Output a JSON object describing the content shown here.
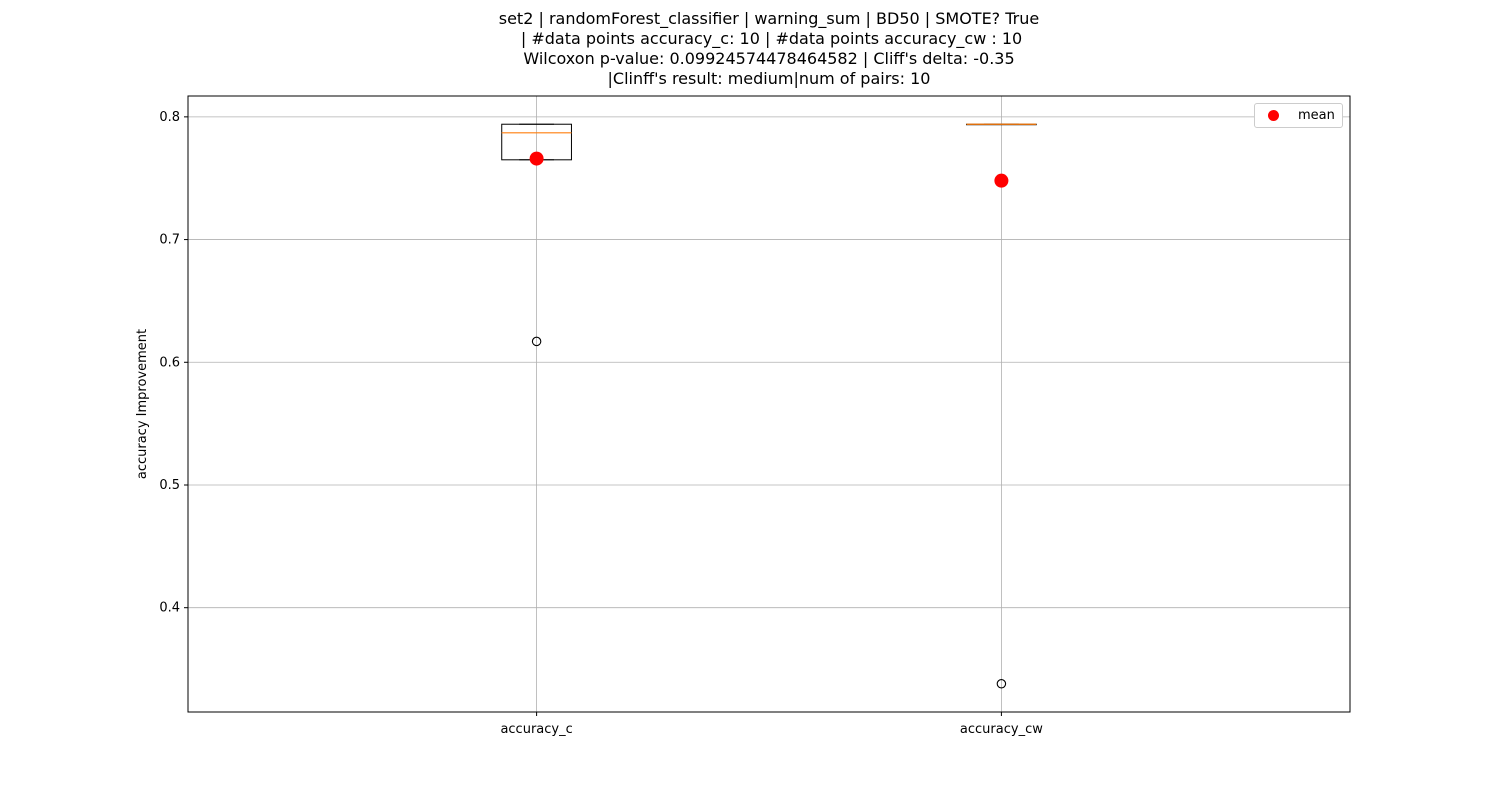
{
  "title_lines": [
    "set2 | randomForest_classifier | warning_sum | BD50 | SMOTE? True",
    " | #data points accuracy_c: 10 | #data points accuracy_cw : 10",
    "Wilcoxon p-value: 0.09924574478464582 | Cliff's delta: -0.35",
    "|Clinff's result: medium|num of pairs: 10"
  ],
  "chart_data": {
    "type": "box",
    "ylabel": "accuracy Improvement",
    "xlabel": "",
    "ylim": [
      0.315,
      0.817
    ],
    "yticks": [
      0.4,
      0.5,
      0.6,
      0.7,
      0.8
    ],
    "grid": true,
    "legend": {
      "entries": [
        "mean"
      ],
      "position": "top-right"
    },
    "colors": {
      "median": "#ff7f0e",
      "mean": "#ff0000",
      "box": "#000000",
      "grid": "#b0b0b0"
    },
    "categories": [
      "accuracy_c",
      "accuracy_cw"
    ],
    "boxes": [
      {
        "name": "accuracy_c",
        "whisker_low": 0.765,
        "q1": 0.765,
        "median": 0.787,
        "q3": 0.794,
        "whisker_high": 0.794,
        "mean": 0.766,
        "outliers": [
          0.617
        ]
      },
      {
        "name": "accuracy_cw",
        "whisker_low": 0.794,
        "q1": 0.794,
        "median": 0.794,
        "q3": 0.794,
        "whisker_high": 0.794,
        "mean": 0.748,
        "outliers": [
          0.338
        ]
      }
    ]
  }
}
